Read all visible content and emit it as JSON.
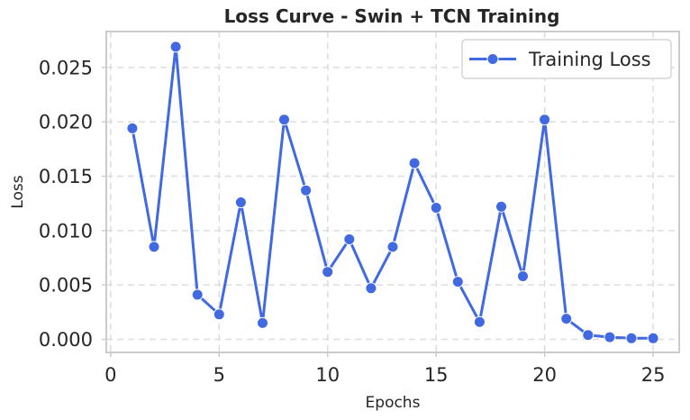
{
  "chart_data": {
    "type": "line",
    "title": "Loss Curve - Swin + TCN Training",
    "xlabel": "Epochs",
    "ylabel": "Loss",
    "xlim": [
      -0.2,
      26.2
    ],
    "ylim": [
      -0.0012,
      0.0283
    ],
    "x_ticks": [
      0,
      5,
      10,
      15,
      20,
      25
    ],
    "y_ticks": [
      0.0,
      0.005,
      0.01,
      0.015,
      0.02,
      0.025
    ],
    "x_tick_labels": [
      "0",
      "5",
      "10",
      "15",
      "20",
      "25"
    ],
    "y_tick_labels": [
      "0.000",
      "0.005",
      "0.010",
      "0.015",
      "0.020",
      "0.025"
    ],
    "grid": true,
    "legend_position": "top-right",
    "series": [
      {
        "name": "Training Loss",
        "color": "#4169e1",
        "marker": "circle",
        "x": [
          1,
          2,
          3,
          4,
          5,
          6,
          7,
          8,
          9,
          10,
          11,
          12,
          13,
          14,
          15,
          16,
          17,
          18,
          19,
          20,
          21,
          22,
          23,
          24,
          25
        ],
        "values": [
          0.0194,
          0.0085,
          0.0269,
          0.0041,
          0.0023,
          0.0126,
          0.0015,
          0.0202,
          0.0137,
          0.0062,
          0.0092,
          0.0047,
          0.0085,
          0.0162,
          0.0121,
          0.0053,
          0.0016,
          0.0122,
          0.0058,
          0.0202,
          0.0019,
          0.0004,
          0.0002,
          0.0001,
          0.0001
        ]
      }
    ]
  }
}
